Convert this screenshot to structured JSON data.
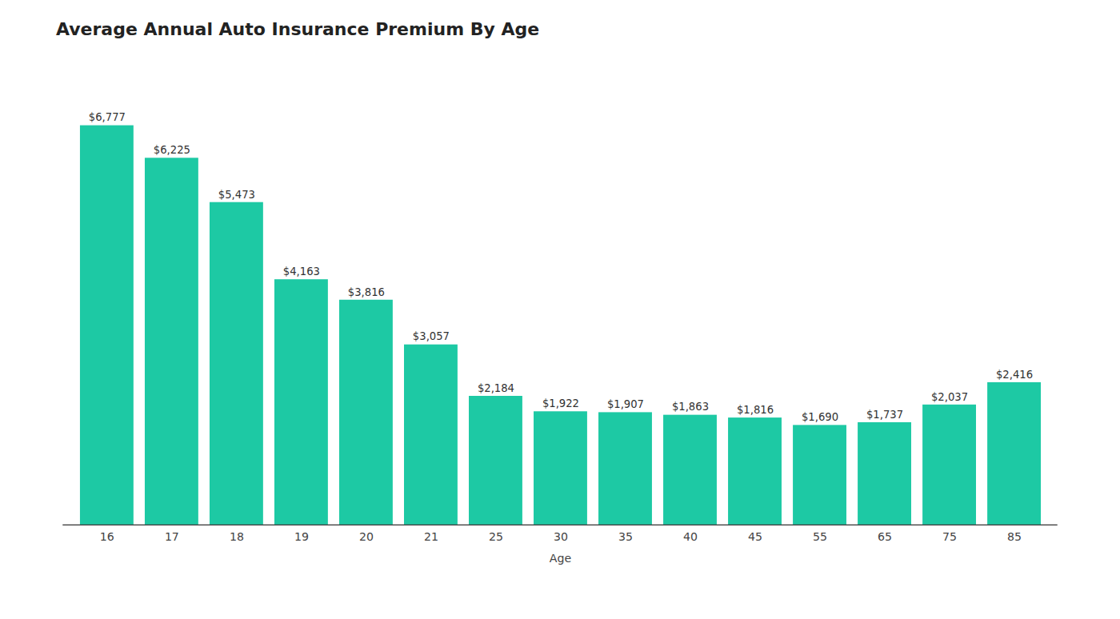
{
  "chart_data": {
    "type": "bar",
    "title": "Average Annual Auto Insurance Premium By Age",
    "xlabel": "Age",
    "categories": [
      "16",
      "17",
      "18",
      "19",
      "20",
      "21",
      "25",
      "30",
      "35",
      "40",
      "45",
      "55",
      "65",
      "75",
      "85"
    ],
    "values": [
      6777,
      6225,
      5473,
      4163,
      3816,
      3057,
      2184,
      1922,
      1907,
      1863,
      1816,
      1690,
      1737,
      2037,
      2416
    ],
    "value_labels": [
      "$6,777",
      "$6,225",
      "$5,473",
      "$4,163",
      "$3,816",
      "$3,057",
      "$2,184",
      "$1,922",
      "$1,907",
      "$1,863",
      "$1,816",
      "$1,690",
      "$1,737",
      "$2,037",
      "$2,416"
    ],
    "data_labels": true,
    "color": "#1DC9A4",
    "ylim": [
      0,
      7800
    ],
    "tick_labels": "x",
    "grid": false
  }
}
